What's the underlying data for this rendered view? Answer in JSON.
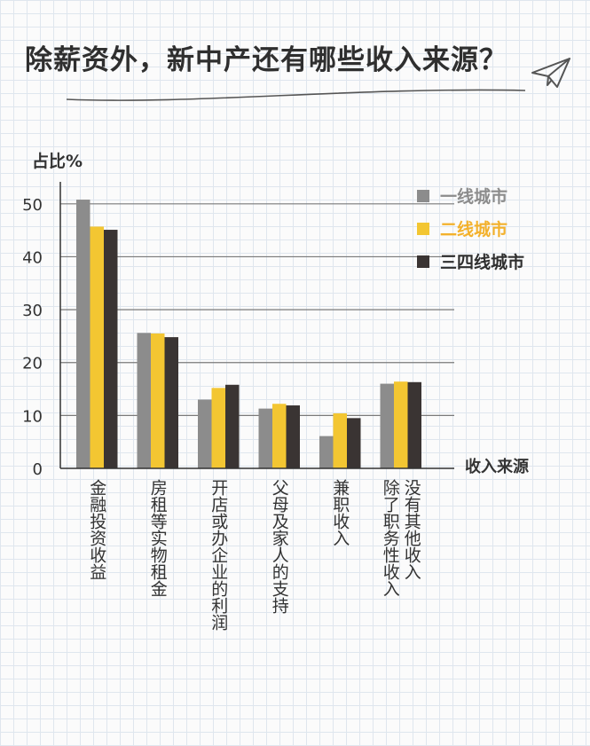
{
  "title": "除薪资外，新中产还有哪些收入来源？",
  "chart_data": {
    "type": "bar",
    "ylabel": "占比%",
    "xlabel": "收入来源",
    "ylim": [
      0,
      55
    ],
    "yticks": [
      0,
      10,
      20,
      30,
      40,
      50
    ],
    "grid": true,
    "legend_position": "top-right",
    "categories": [
      "金融投资收益",
      "房租等实物租金",
      "开店或办企业的利润",
      "父母及家人的支持",
      "兼职收入",
      "没有其他收入|除了职务性收入"
    ],
    "series": [
      {
        "name": "一线城市",
        "color": "#8c8c8c",
        "legend_color": "#8c8c8c",
        "values": [
          50.8,
          25.6,
          13.0,
          11.3,
          6.1,
          16.0
        ]
      },
      {
        "name": "二线城市",
        "color": "#f3c632",
        "legend_color": "#f3b12c",
        "values": [
          45.7,
          25.5,
          15.2,
          12.2,
          10.4,
          16.4
        ]
      },
      {
        "name": "三四线城市",
        "color": "#3a3433",
        "legend_color": "#2f2f2f",
        "values": [
          45.1,
          24.8,
          15.8,
          11.9,
          9.5,
          16.3
        ]
      }
    ]
  }
}
